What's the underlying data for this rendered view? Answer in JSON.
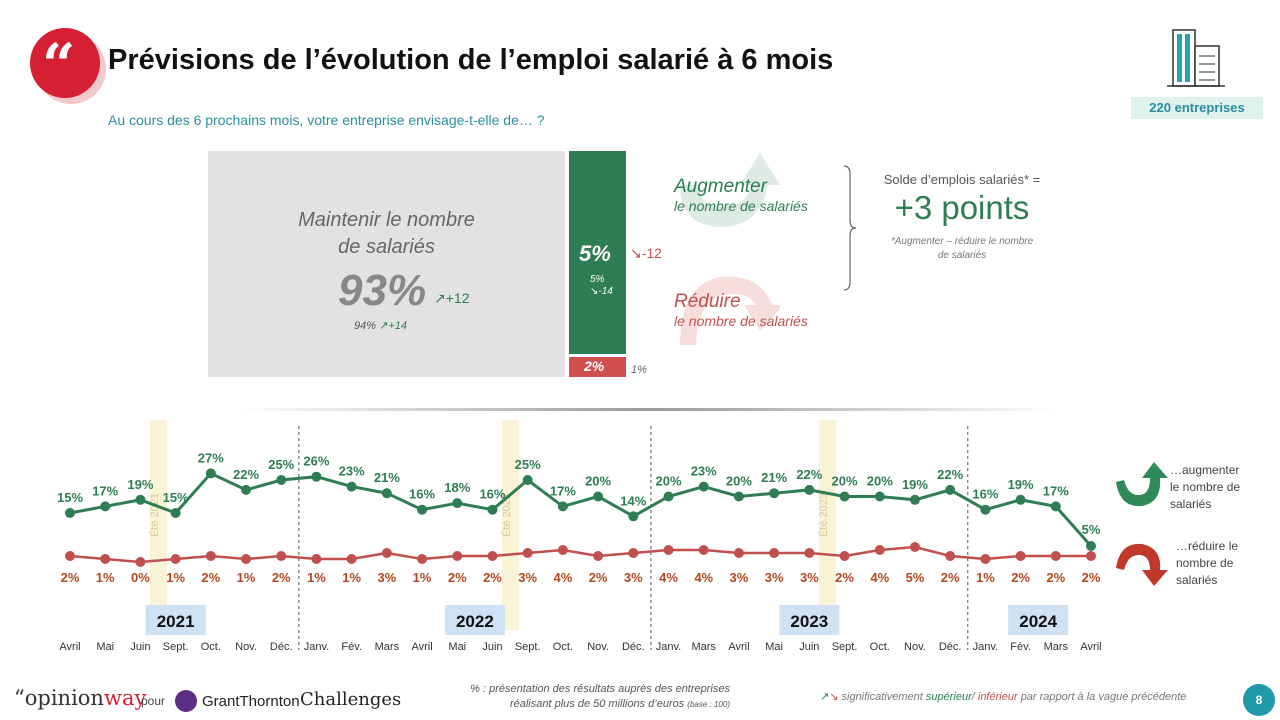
{
  "header": {
    "quote_glyph": "“",
    "title": "Prévisions de l’évolution de l’emploi salarié à 6 mois",
    "subtitle": "Au cours des 6 prochains mois, votre entreprise envisage-t-elle de… ?",
    "sample": "220 entreprises",
    "sample_icon": "building-icon"
  },
  "breakdown": {
    "maintain": {
      "label_line1": "Maintenir le nombre",
      "label_line2": "de salariés",
      "pct": "93%",
      "change": "+12",
      "prev_pct": "94%",
      "prev_change": "+14",
      "value": 93
    },
    "increase": {
      "pct": "5%",
      "change": "-12",
      "prev_pct": "5%",
      "prev_change": "-14",
      "label_title": "Augmenter",
      "label_sub": "le nombre de salariés",
      "value": 5
    },
    "decrease": {
      "pct": "2%",
      "prev_pct": "1%",
      "label_title": "Réduire",
      "label_sub": "le nombre de salariés",
      "value": 2
    }
  },
  "solde": {
    "label": "Solde d’emplois salariés* =",
    "value": "+3 points",
    "note_line1": "*Augmenter – réduire le nombre",
    "note_line2": "de salariés"
  },
  "chart_data": {
    "type": "line",
    "x": [
      "Avril",
      "Mai",
      "Juin",
      "Sept.",
      "Oct.",
      "Nov.",
      "Déc.",
      "Janv.",
      "Fév.",
      "Mars",
      "Avril",
      "Mai",
      "Juin",
      "Sept.",
      "Oct.",
      "Nov.",
      "Déc.",
      "Janv.",
      "Mars",
      "Avril",
      "Mai",
      "Juin",
      "Sept.",
      "Oct.",
      "Nov.",
      "Déc.",
      "Janv.",
      "Fév.",
      "Mars",
      "Avril"
    ],
    "series": [
      {
        "name": "…augmenter le nombre de salariés",
        "color": "#2e7d53",
        "values": [
          15,
          17,
          19,
          15,
          27,
          22,
          25,
          26,
          23,
          21,
          16,
          18,
          16,
          25,
          17,
          20,
          14,
          20,
          23,
          20,
          21,
          22,
          20,
          20,
          19,
          22,
          16,
          19,
          17,
          5
        ]
      },
      {
        "name": "…réduire le nombre de salariés",
        "color": "#c0504d",
        "values": [
          2,
          1,
          0,
          1,
          2,
          1,
          2,
          1,
          1,
          3,
          1,
          2,
          2,
          3,
          4,
          2,
          3,
          4,
          4,
          3,
          3,
          3,
          2,
          4,
          5,
          2,
          1,
          2,
          2,
          2
        ]
      }
    ],
    "years": [
      {
        "label": "2021",
        "from_index": 0,
        "to_index": 6
      },
      {
        "label": "2022",
        "from_index": 7,
        "to_index": 16
      },
      {
        "label": "2023",
        "from_index": 17,
        "to_index": 25
      },
      {
        "label": "2024",
        "from_index": 26,
        "to_index": 29
      }
    ],
    "year_separators_before_index": [
      7,
      17,
      26
    ],
    "summer_markers": [
      {
        "label": "Été 2021",
        "between": [
          2,
          3
        ]
      },
      {
        "label": "Été 2022",
        "between": [
          12,
          13
        ]
      },
      {
        "label": "Été 2023",
        "between": [
          21,
          22
        ]
      }
    ]
  },
  "legend": {
    "aug_line1": "…augmenter",
    "aug_line2": "le nombre de",
    "aug_line3": "salariés",
    "red_line1": "…réduire le",
    "red_line2": "nombre de",
    "red_line3": "salariés"
  },
  "footer": {
    "brand_opinion": "opinion",
    "brand_way": "way",
    "pour": "pour",
    "partner": "GrantThornton",
    "partner2": "Challenges",
    "note_line1": "% : présentation des résultats auprès des entreprises",
    "note_line2": "réalisant plus de 50 millions d’euros",
    "note_base": "(base : 100)",
    "sig_prefix": "significativement",
    "sig_sup": "supérieur",
    "sig_sep": "/",
    "sig_inf": "inférieur",
    "sig_suffix": "par rapport à la vague précédente",
    "page": "8"
  },
  "colors": {
    "green": "#2e7d53",
    "red": "#c0504d",
    "teal": "#2a8fa0",
    "brand_red": "#d42032"
  }
}
